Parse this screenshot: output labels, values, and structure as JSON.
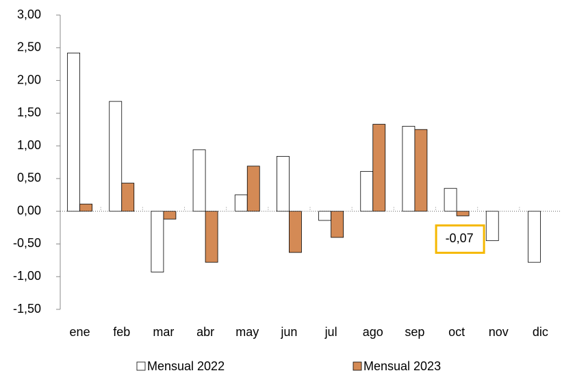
{
  "chart_data": {
    "type": "bar",
    "categories": [
      "ene",
      "feb",
      "mar",
      "abr",
      "may",
      "jun",
      "jul",
      "ago",
      "sep",
      "oct",
      "nov",
      "dic"
    ],
    "series": [
      {
        "name": "Mensual 2022",
        "color": "#ffffff",
        "values": [
          2.42,
          1.68,
          -0.93,
          0.94,
          0.25,
          0.84,
          -0.14,
          0.61,
          1.3,
          0.35,
          -0.45,
          -0.78
        ]
      },
      {
        "name": "Mensual 2023",
        "color": "#d48a55",
        "values": [
          0.11,
          0.43,
          -0.12,
          -0.78,
          0.69,
          -0.63,
          -0.4,
          1.33,
          1.25,
          -0.07,
          null,
          null
        ],
        "value_labels": [
          null,
          null,
          null,
          null,
          null,
          null,
          null,
          null,
          null,
          "-0,07",
          null,
          null
        ]
      }
    ],
    "ylim": [
      -1.5,
      3.0
    ],
    "yticks": [
      {
        "value": -1.5,
        "label": "-1,50"
      },
      {
        "value": -1.0,
        "label": "-1,00"
      },
      {
        "value": -0.5,
        "label": "-0,50"
      },
      {
        "value": 0,
        "label": "0,00"
      },
      {
        "value": 0.5,
        "label": "0,50"
      },
      {
        "value": 1.0,
        "label": "1,00"
      },
      {
        "value": 1.5,
        "label": "1,50"
      },
      {
        "value": 2.0,
        "label": "2,00"
      },
      {
        "value": 2.5,
        "label": "2,50"
      },
      {
        "value": 3.0,
        "label": "3,00"
      }
    ],
    "legend": "bottom"
  }
}
